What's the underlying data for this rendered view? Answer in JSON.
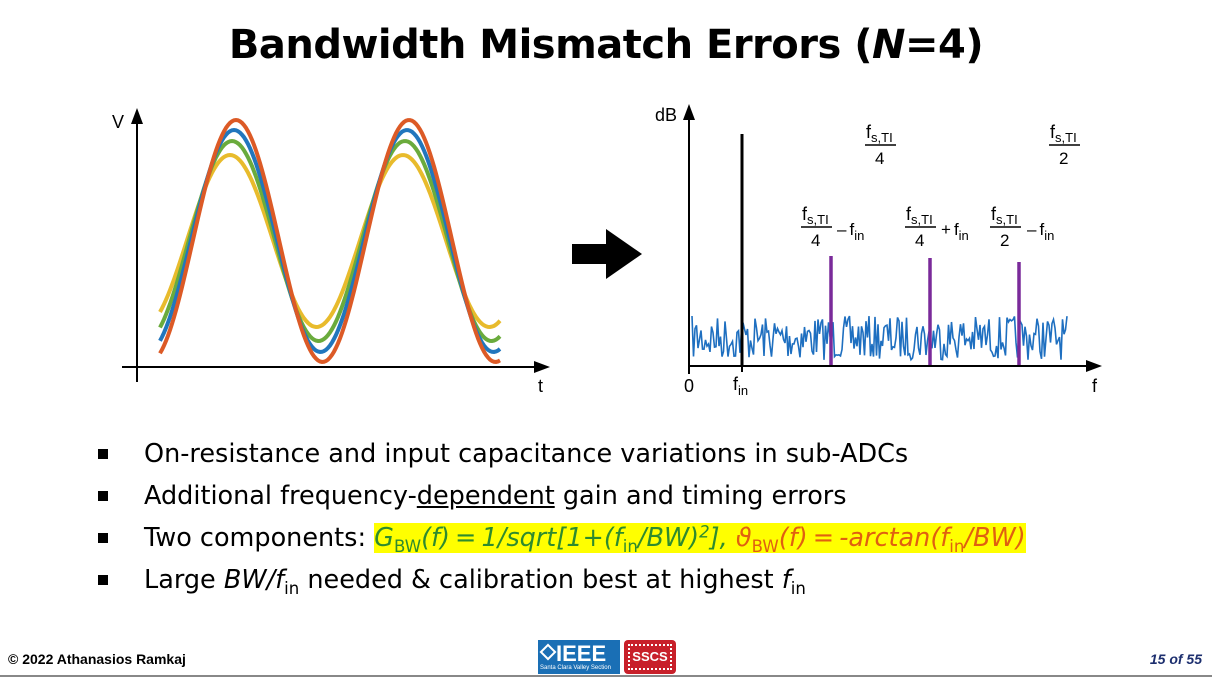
{
  "title": {
    "main": "Bandwidth Mismatch Errors (",
    "var": "N",
    "tail": "=4)"
  },
  "left_plot": {
    "y_label": "V",
    "x_label": "t",
    "wave_colors": [
      "#e8bb2c",
      "#6aab3c",
      "#2176bd",
      "#dc5a26"
    ]
  },
  "arrow_color": "#000000",
  "right_plot": {
    "y_label": "dB",
    "x_label": "f",
    "origin_label": "0",
    "fin_label": "f",
    "fin_sub": "in",
    "noise_color": "#1e6fc0",
    "spur_color": "#7a2a9a",
    "fs4_num": "f",
    "fs4_num_sub": "s,TI",
    "fs4_den": "4",
    "fs2_num": "f",
    "fs2_num_sub": "s,TI",
    "fs2_den": "2",
    "spur1": {
      "num": "f",
      "num_sub": "s,TI",
      "den": "4",
      "op": "–",
      "var": "f",
      "var_sub": "in"
    },
    "spur2": {
      "num": "f",
      "num_sub": "s,TI",
      "den": "4",
      "op": "+",
      "var": "f",
      "var_sub": "in"
    },
    "spur3": {
      "num": "f",
      "num_sub": "s,TI",
      "den": "2",
      "op": "–",
      "var": "f",
      "var_sub": "in"
    }
  },
  "bullets": {
    "b1": "On-resistance and input capacitance variations in sub-ADCs",
    "b2_pre": "Additional frequency-",
    "b2_u": "dependent",
    "b2_post": " gain and timing errors",
    "b3_pre": "Two components: ",
    "g_sym": "G",
    "g_sub": "BW",
    "g_mid": "(f) = 1/sqrt[1+(f",
    "g_sub2": "in",
    "g_mid2": "/BW)",
    "g_sup": "2",
    "g_end": "]",
    "comma": ", ",
    "t_sym": "ϑ",
    "t_sub": "BW",
    "t_mid": "(f) = -arctan(f",
    "t_sub2": "in",
    "t_end": "/BW)",
    "b4_pre": "Large ",
    "b4_bw": "BW/f",
    "b4_sub": "in",
    "b4_mid": " needed & calibration best at highest ",
    "b4_f": "f",
    "b4_sub2": "in"
  },
  "footer": {
    "copyright": "© 2022 Athanasios Ramkaj",
    "page": "15 of 55",
    "ieee": "IEEE",
    "ieee_sub": "Santa Clara Valley Section",
    "sscs": "SSCS"
  }
}
